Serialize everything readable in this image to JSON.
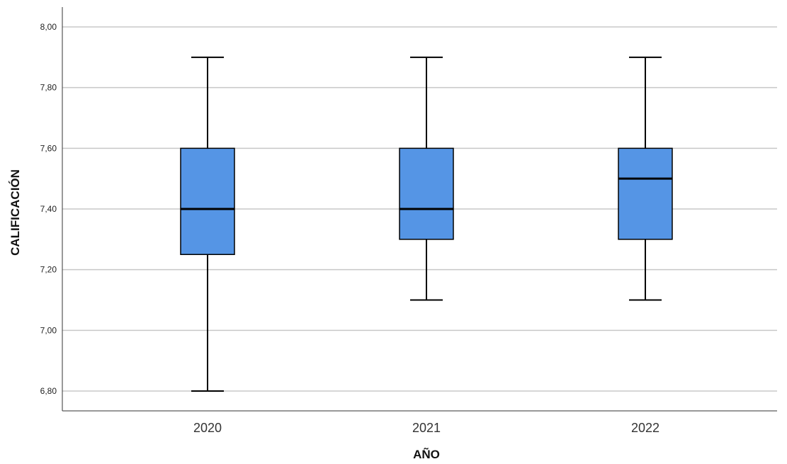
{
  "chart_data": {
    "type": "boxplot",
    "title": "",
    "xlabel": "AÑO",
    "ylabel": "CALIFICACIÓN",
    "categories": [
      "2020",
      "2021",
      "2022"
    ],
    "boxes": [
      {
        "category": "2020",
        "min": 6.8,
        "q1": 7.25,
        "median": 7.4,
        "q3": 7.6,
        "max": 7.9
      },
      {
        "category": "2021",
        "min": 7.1,
        "q1": 7.3,
        "median": 7.4,
        "q3": 7.6,
        "max": 7.9
      },
      {
        "category": "2022",
        "min": 7.1,
        "q1": 7.3,
        "median": 7.5,
        "q3": 7.6,
        "max": 7.9
      }
    ],
    "ylim": [
      6.8,
      8.0
    ],
    "yticks": [
      6.8,
      7.0,
      7.2,
      7.4,
      7.6,
      7.8,
      8.0
    ],
    "ytick_labels": [
      "6,80",
      "7,00",
      "7,20",
      "7,40",
      "7,60",
      "7,80",
      "8,00"
    ],
    "grid": true,
    "colors": {
      "box_fill": "#5595e5",
      "line": "#000000",
      "grid": "#c8c8c8"
    }
  }
}
